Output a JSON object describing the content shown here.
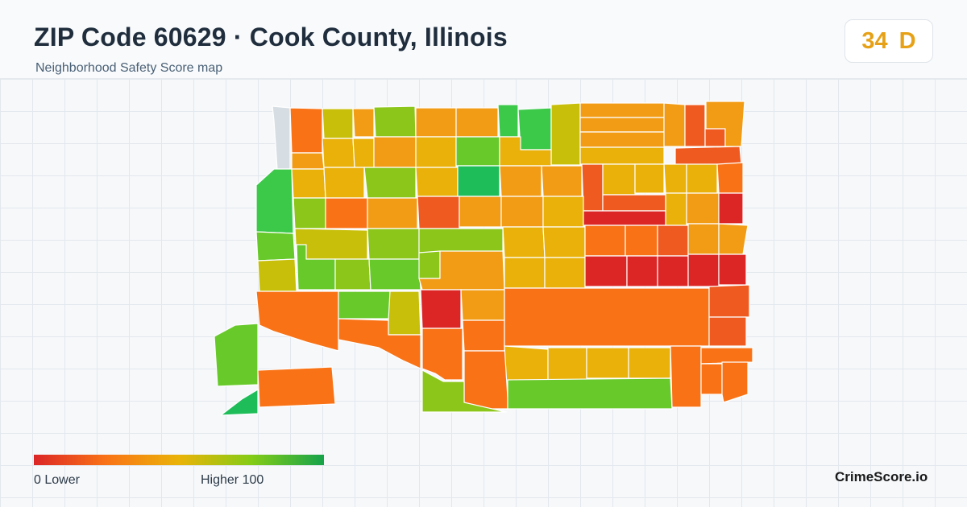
{
  "header": {
    "title": "ZIP Code 60629 · Cook County, Illinois",
    "subtitle": "Neighborhood Safety Score map"
  },
  "score": {
    "value": "34",
    "grade": "D",
    "color": "#e6a117"
  },
  "legend": {
    "low_label": "0  Lower",
    "high_label": "Higher  100",
    "colors": [
      "#dc2626",
      "#f97316",
      "#eab308",
      "#84cc16",
      "#16a34a"
    ]
  },
  "brand": "CrimeScore.io",
  "palette": {
    "red": "#dc2626",
    "red_orange": "#ee5a1f",
    "orange": "#f97316",
    "orange_yellow": "#f29c16",
    "yellow": "#e9b10a",
    "yellow_green": "#c8bf0a",
    "lime": "#8cc61a",
    "green_light": "#68c92b",
    "green": "#3cc94a",
    "green_dark": "#1fbd5a",
    "no_data": "#d6dde3"
  }
}
